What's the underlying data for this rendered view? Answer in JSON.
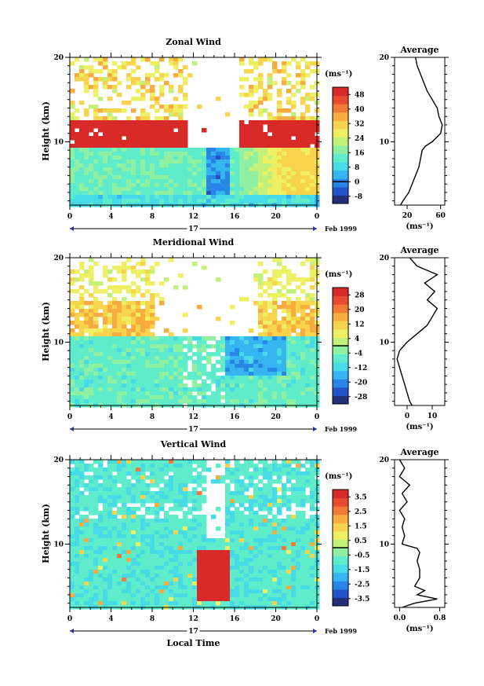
{
  "figure": {
    "bottom_xlabel": "Local Time",
    "date_label": "Feb 1999",
    "day_label": "17",
    "colorbar_unit": "(ms⁻¹)",
    "avg_unit": "(ms⁻¹)",
    "colormap": [
      "#242f7a",
      "#2450c8",
      "#2a86e6",
      "#35b6f0",
      "#46dbe6",
      "#5eeccb",
      "#8ef0a0",
      "#c3f07a",
      "#ecf062",
      "#f8d44c",
      "#f8ab3e",
      "#f27a34",
      "#e84a30",
      "#d82a28"
    ]
  },
  "chart_data": [
    {
      "type": "heatmap",
      "title": "Zonal Wind",
      "ylabel": "Height (km)",
      "x_ticks": [
        "0",
        "4",
        "8",
        "12",
        "16",
        "20",
        "0"
      ],
      "xlim": [
        0,
        24
      ],
      "y_ticks": [
        "10",
        "20"
      ],
      "ylim": [
        2.5,
        20
      ],
      "colorbar_ticks": [
        "48",
        "40",
        "32",
        "24",
        "16",
        "8",
        "0",
        "-8"
      ],
      "colorbar_range": [
        -12,
        52
      ],
      "avg_title": "Average",
      "avg_x_ticks": [
        "20",
        "60"
      ],
      "avg_xlim": [
        5,
        65
      ],
      "profile": {
        "height_km": [
          2.5,
          3,
          4,
          5,
          6,
          7,
          8,
          9,
          9.5,
          10,
          11,
          12,
          13,
          14,
          15,
          16,
          17,
          18,
          19,
          20
        ],
        "speed": [
          12,
          15,
          22,
          26,
          30,
          34,
          36,
          38,
          42,
          50,
          60,
          62,
          58,
          56,
          50,
          44,
          40,
          36,
          32,
          30
        ]
      }
    },
    {
      "type": "heatmap",
      "title": "Meridional Wind",
      "ylabel": "Height (km)",
      "x_ticks": [
        "0",
        "4",
        "8",
        "12",
        "16",
        "20",
        "0"
      ],
      "xlim": [
        0,
        24
      ],
      "y_ticks": [
        "10",
        "20"
      ],
      "ylim": [
        2.5,
        20
      ],
      "colorbar_ticks": [
        "28",
        "20",
        "12",
        "4",
        "-4",
        "-12",
        "-20",
        "-28"
      ],
      "colorbar_range": [
        -32,
        32
      ],
      "avg_title": "Average",
      "avg_x_ticks": [
        "0",
        "10"
      ],
      "avg_xlim": [
        -5,
        15
      ],
      "profile": {
        "height_km": [
          2.5,
          3,
          4,
          5,
          6,
          7,
          8,
          9,
          10,
          11,
          12,
          13,
          14,
          15,
          16,
          17,
          18,
          19,
          20
        ],
        "speed": [
          2,
          1,
          0,
          -1,
          -2,
          -3,
          -4,
          -3,
          0,
          4,
          8,
          10,
          12,
          8,
          11,
          7,
          12,
          4,
          1
        ]
      }
    },
    {
      "type": "heatmap",
      "title": "Vertical Wind",
      "ylabel": "Height (km)",
      "x_ticks": [
        "0",
        "4",
        "8",
        "12",
        "16",
        "20",
        "0"
      ],
      "xlim": [
        0,
        24
      ],
      "y_ticks": [
        "10",
        "20"
      ],
      "ylim": [
        2.5,
        20
      ],
      "colorbar_ticks": [
        "3.5",
        "2.5",
        "1.5",
        "0.5",
        "-0.5",
        "-1.5",
        "-2.5",
        "-3.5"
      ],
      "colorbar_range": [
        -4,
        4
      ],
      "avg_title": "Average",
      "avg_x_ticks": [
        "0.0",
        "0.8"
      ],
      "avg_xlim": [
        -0.1,
        0.9
      ],
      "profile": {
        "height_km": [
          2.5,
          3,
          3.5,
          4,
          4.5,
          5,
          6,
          7,
          8,
          9,
          9.5,
          10,
          11,
          12,
          13,
          14,
          15,
          16,
          17,
          18,
          19,
          20
        ],
        "speed": [
          0.05,
          0.3,
          0.75,
          0.35,
          0.5,
          0.3,
          0.4,
          0.4,
          0.35,
          0.4,
          0.35,
          0.05,
          0.1,
          0.05,
          0.1,
          0.0,
          0.15,
          0.05,
          0.2,
          0.0,
          0.1,
          0.0
        ]
      }
    }
  ]
}
